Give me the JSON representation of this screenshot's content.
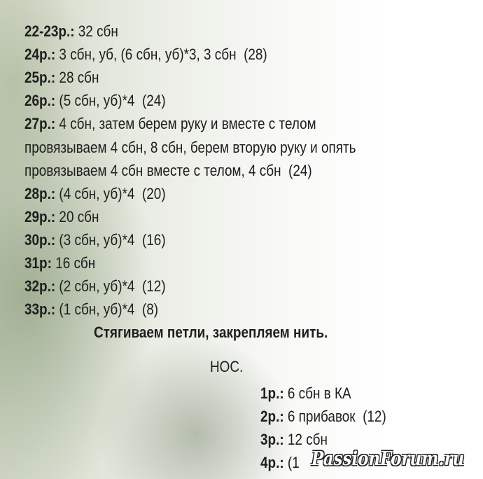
{
  "rows": [
    {
      "label": "22-23р.:",
      "text": " 32 сбн"
    },
    {
      "label": "24р.:",
      "text": " 3 сбн, уб, (6 сбн, уб)*3, 3 сбн  (28)"
    },
    {
      "label": "25р.:",
      "text": " 28 сбн"
    },
    {
      "label": "26р.:",
      "text": " (5 сбн, уб)*4  (24)"
    },
    {
      "label": "27р.:",
      "text": " 4 сбн, затем берем руку и вместе с телом"
    },
    {
      "label": "",
      "text": "провязываем 4 сбн, 8 сбн, берем вторую руку и опять"
    },
    {
      "label": "",
      "text": "провязываем 4 сбн вместе с телом, 4 сбн  (24)"
    },
    {
      "label": "28р.:",
      "text": " (4 сбн, уб)*4  (20)"
    },
    {
      "label": "29р.:",
      "text": " 20 сбн"
    },
    {
      "label": "30р.:",
      "text": " (3 сбн, уб)*4  (16)"
    },
    {
      "label": "31р:",
      "text": " 16 сбн"
    },
    {
      "label": "32р.:",
      "text": " (2 сбн, уб)*4  (12)"
    },
    {
      "label": "33р.:",
      "text": " (1 сбн, уб)*4  (8)"
    }
  ],
  "closing": "Стягиваем петли, закрепляем нить.",
  "section_title": "НОС.",
  "nose_rows": [
    {
      "label": "1р.:",
      "text": " 6 сбн в КА"
    },
    {
      "label": "2р.:",
      "text": " 6 прибавок  (12)"
    },
    {
      "label": "3р.:",
      "text": " 12 сбн"
    },
    {
      "label": "4р.:",
      "text": " (1"
    }
  ],
  "watermark": "PassionForum.ru"
}
